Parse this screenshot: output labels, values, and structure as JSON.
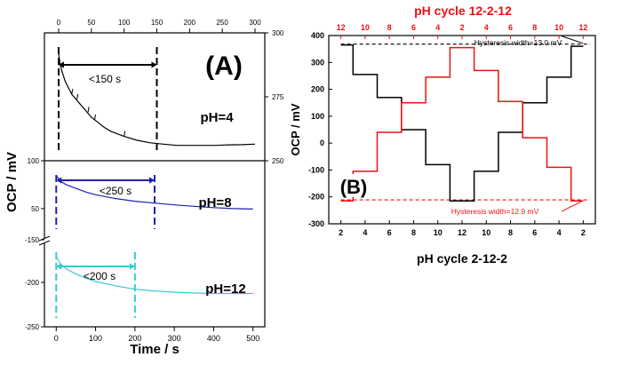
{
  "chart_data": [
    {
      "panel_label": "(A)",
      "type": "line",
      "ylabel": "OCP / mV",
      "xlabel": "Time / s",
      "x_bottom_ticks": [
        "0",
        "100",
        "200",
        "300",
        "400",
        "500"
      ],
      "x_top_ticks": [
        "0",
        "50",
        "100",
        "150",
        "200",
        "250",
        "300"
      ],
      "sub_panels": [
        {
          "label": "pH=4",
          "color": "#000000",
          "x_axis": "top",
          "xlim": [
            0,
            300
          ],
          "ylim": [
            250,
            300
          ],
          "y_ticks": [
            "250",
            "275",
            "300"
          ],
          "x": [
            0,
            2,
            5,
            10,
            20,
            30,
            40,
            50,
            60,
            70,
            80,
            100,
            120,
            140,
            160,
            180,
            200,
            220,
            240,
            260,
            280,
            300
          ],
          "values": [
            292,
            288,
            285,
            281,
            276,
            273,
            270,
            267,
            265,
            263,
            261.5,
            259.5,
            258,
            257,
            256.5,
            256,
            256,
            256,
            256,
            256.2,
            256.3,
            256.5
          ],
          "annotation": "<150 s",
          "range_markers_x": [
            0,
            150
          ]
        },
        {
          "label": "pH=8",
          "color": "#1f1fb4",
          "x_axis": "bottom",
          "xlim": [
            -30,
            530
          ],
          "ylim": [
            20,
            100
          ],
          "y_ticks": [
            "50",
            "100"
          ],
          "x": [
            0,
            10,
            25,
            50,
            75,
            100,
            150,
            200,
            250,
            300,
            350,
            400,
            450,
            500
          ],
          "values": [
            86,
            80,
            76,
            72,
            68,
            65,
            61,
            58,
            56,
            54,
            52.5,
            51,
            50,
            49.5
          ],
          "annotation": "<250 s",
          "range_markers_x": [
            0,
            250
          ]
        },
        {
          "label": "pH=12",
          "color": "#33cccc",
          "x_axis": "bottom",
          "xlim": [
            -30,
            530
          ],
          "ylim": [
            -250,
            -150
          ],
          "y_ticks": [
            "-150",
            "-200",
            "-250"
          ],
          "x": [
            0,
            10,
            25,
            50,
            75,
            100,
            150,
            200,
            250,
            300,
            350,
            400,
            450,
            500
          ],
          "values": [
            -170,
            -178,
            -184,
            -190,
            -195,
            -199,
            -204,
            -208,
            -210,
            -211.5,
            -212.5,
            -213,
            -213,
            -213
          ],
          "annotation": "<200 s",
          "range_markers_x": [
            0,
            200
          ]
        }
      ]
    },
    {
      "panel_label": "(B)",
      "type": "line",
      "title": "pH cycle 12-2-12",
      "xlabel": "pH cycle 2-12-2",
      "ylabel": "OCP / mV",
      "ylim": [
        -300,
        400
      ],
      "y_ticks": [
        "-300",
        "-200",
        "-100",
        "0",
        "100",
        "200",
        "300",
        "400"
      ],
      "x_bottom_ticks": [
        "2",
        "4",
        "6",
        "8",
        "10",
        "12",
        "10",
        "8",
        "6",
        "4",
        "2"
      ],
      "x_top_ticks": [
        "12",
        "10",
        "8",
        "6",
        "4",
        "2",
        "4",
        "6",
        "8",
        "10",
        "12"
      ],
      "series": [
        {
          "color": "#000000",
          "x": [
            0,
            1,
            2,
            3,
            4,
            5,
            6,
            7,
            8,
            9,
            10
          ],
          "values": [
            365,
            255,
            170,
            50,
            -80,
            -215,
            -105,
            40,
            150,
            245,
            360
          ]
        },
        {
          "color": "#ee1111",
          "x": [
            0,
            1,
            2,
            3,
            4,
            5,
            6,
            7,
            8,
            9,
            10
          ],
          "values": [
            -215,
            -105,
            40,
            150,
            245,
            355,
            270,
            155,
            20,
            -90,
            -215
          ]
        }
      ],
      "hysteresis": [
        {
          "label": "Hysteresis width=13.0 mV",
          "value": 368,
          "color": "#000000"
        },
        {
          "label": "Hysteresis width=12.9 mV",
          "value": -211,
          "color": "#ee1111"
        }
      ]
    }
  ]
}
